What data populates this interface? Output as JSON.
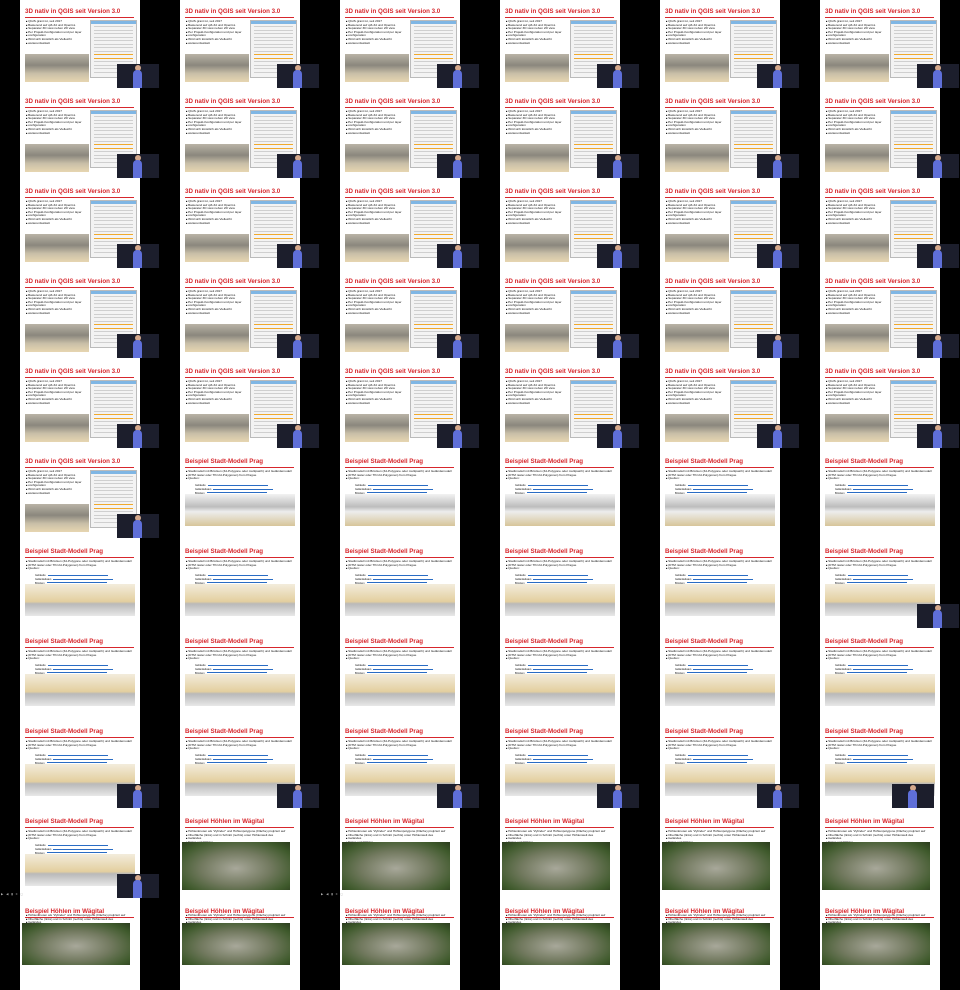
{
  "slides": {
    "qgis3d": {
      "title": "3D nativ in QGIS seit Version 3.0",
      "bullets": [
        "QGIS grant ist, seit 2017",
        "Basierend auf qt3-3d und OpenGL",
        "Separater 3D view neben 2D view",
        "Per Projekt-Konfiguration und per layer",
        "configuration",
        "Wird sich künstlich als Vielleicht",
        "weiterentwickelt"
      ]
    },
    "prag": {
      "title": "Beispiel Stadt-Modell Prag",
      "bullets": [
        "Stadtmodell mit Brücken (3d-Polygone oder multipatch) und Geländemodell",
        "(DTM raster oder TIN 2d-Polygonen) from Prague",
        "Quellen:"
      ],
      "sources": [
        "Gebäude",
        "Geländedaten",
        "Brücken"
      ]
    },
    "hoehlen": {
      "title": "Beispiel Höhlen im Wägital",
      "bullets": [
        "Höhlenknoten als \"Zylinder\" und Höhlenpolygone (Fläche) projiziert auf",
        "Oberfläche (links) und in Schnitt (rechts) unter Höhlenwelt des",
        "Geländes",
        "Daten und Höhlen"
      ]
    }
  },
  "player_controls": "▶ ◀ ▮ ≡ ◻"
}
